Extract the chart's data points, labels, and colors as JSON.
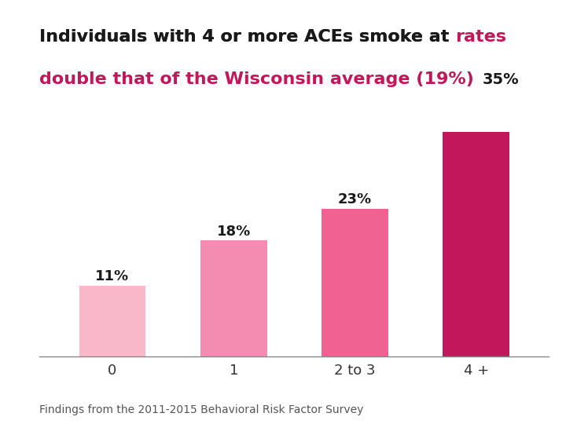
{
  "categories": [
    "0",
    "1",
    "2 to 3",
    "4 +"
  ],
  "values": [
    11,
    18,
    23,
    35
  ],
  "bar_colors": [
    "#f9b8ca",
    "#f48cb1",
    "#f06292",
    "#c2185b"
  ],
  "bar_labels": [
    "11%",
    "18%",
    "23%"
  ],
  "footnote": "Findings from the 2011-2015 Behavioral Risk Factor Survey",
  "background_color": "#ffffff",
  "ylim_max": 37,
  "title_fontsize": 16,
  "label_fontsize": 13,
  "tick_fontsize": 13,
  "footnote_fontsize": 10,
  "annotation_35_fontsize": 14
}
